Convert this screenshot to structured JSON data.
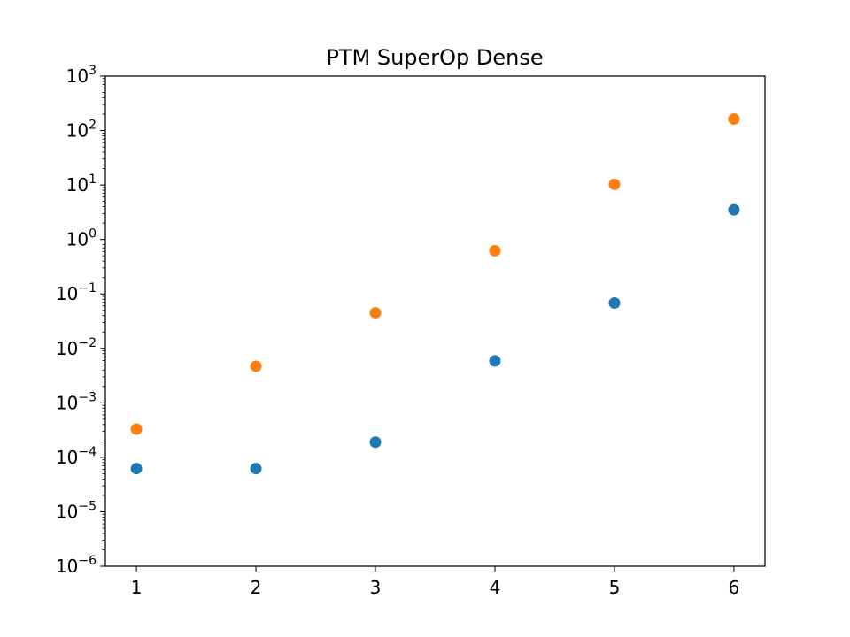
{
  "chart_data": {
    "type": "scatter",
    "title": "PTM SuperOp Dense",
    "xlabel": "",
    "ylabel": "",
    "x_ticks": [
      1,
      2,
      3,
      4,
      5,
      6
    ],
    "y_scale": "log",
    "ylim": [
      1e-06,
      1000
    ],
    "y_tick_exponents": [
      -6,
      -5,
      -4,
      -3,
      -2,
      -1,
      0,
      1,
      2,
      3
    ],
    "y_tick_base": "10",
    "grid": false,
    "legend": "none",
    "series": [
      {
        "color": "#1f77b4",
        "x": [
          1,
          2,
          3,
          4,
          5,
          6
        ],
        "y": [
          6.2e-05,
          6.2e-05,
          0.00019,
          0.0059,
          0.068,
          3.5
        ]
      },
      {
        "color": "#ff7f0e",
        "x": [
          1,
          2,
          3,
          4,
          5,
          6
        ],
        "y": [
          0.00033,
          0.0047,
          0.045,
          0.62,
          10.3,
          163
        ]
      }
    ]
  }
}
